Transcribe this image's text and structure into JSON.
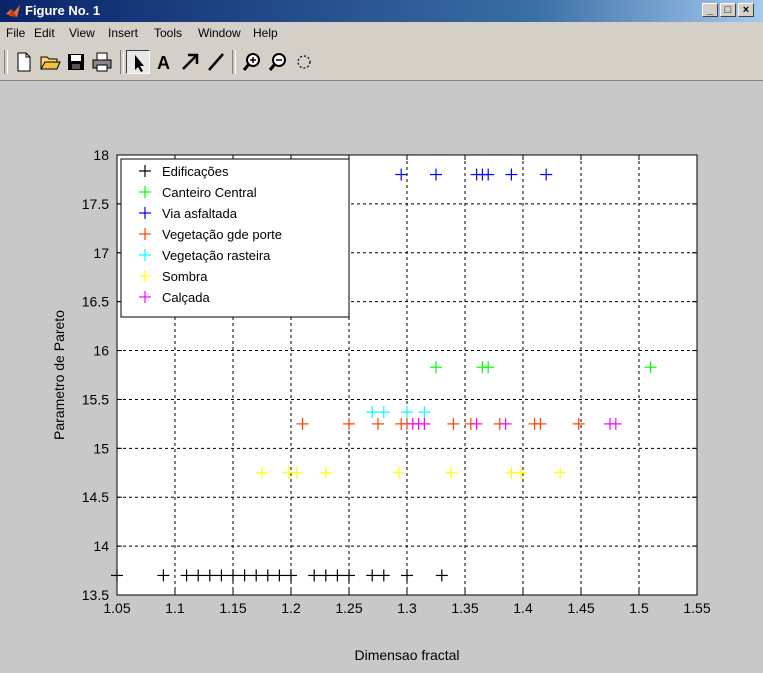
{
  "window": {
    "title": "Figure No. 1",
    "menu": [
      "File",
      "Edit",
      "View",
      "Insert",
      "Tools",
      "Window",
      "Help"
    ]
  },
  "toolbar_icons": [
    "new-file-icon",
    "open-folder-icon",
    "save-icon",
    "print-icon",
    "arrow-select-icon",
    "text-insert-icon",
    "arrow-insert-icon",
    "line-insert-icon",
    "zoom-in-icon",
    "zoom-out-icon",
    "rotate-icon"
  ],
  "chart_data": {
    "type": "scatter",
    "marker": "+",
    "xlabel": "Dimensao fractal",
    "ylabel": "Parametro de Pareto",
    "xlim": [
      1.05,
      1.55
    ],
    "ylim": [
      13.5,
      18
    ],
    "xticks": [
      "1.05",
      "1.1",
      "1.15",
      "1.2",
      "1.25",
      "1.3",
      "1.35",
      "1.4",
      "1.45",
      "1.5",
      "1.55"
    ],
    "yticks": [
      "13.5",
      "14",
      "14.5",
      "15",
      "15.5",
      "16",
      "16.5",
      "17",
      "17.5",
      "18"
    ],
    "grid": true,
    "legend_position": "top-left",
    "series": [
      {
        "name": "Edificações",
        "color": "#000000",
        "x": [
          1.05,
          1.09,
          1.11,
          1.12,
          1.13,
          1.14,
          1.15,
          1.16,
          1.17,
          1.18,
          1.19,
          1.2,
          1.22,
          1.23,
          1.24,
          1.25,
          1.27,
          1.28,
          1.3,
          1.33
        ],
        "y": [
          13.7,
          13.7,
          13.7,
          13.7,
          13.7,
          13.7,
          13.7,
          13.7,
          13.7,
          13.7,
          13.7,
          13.7,
          13.7,
          13.7,
          13.7,
          13.7,
          13.7,
          13.7,
          13.7,
          13.7
        ]
      },
      {
        "name": "Canteiro Central",
        "color": "#00ff00",
        "x": [
          1.325,
          1.365,
          1.37,
          1.51
        ],
        "y": [
          15.83,
          15.83,
          15.83,
          15.83
        ]
      },
      {
        "name": "Via asfaltada",
        "color": "#0000ff",
        "x": [
          1.295,
          1.325,
          1.36,
          1.365,
          1.37,
          1.39,
          1.42
        ],
        "y": [
          17.8,
          17.8,
          17.8,
          17.8,
          17.8,
          17.8,
          17.8
        ]
      },
      {
        "name": "Vegetação gde porte",
        "color": "#ff4000",
        "x": [
          1.21,
          1.25,
          1.275,
          1.295,
          1.3,
          1.34,
          1.355,
          1.38,
          1.41,
          1.415,
          1.448
        ],
        "y": [
          15.25,
          15.25,
          15.25,
          15.25,
          15.25,
          15.25,
          15.25,
          15.25,
          15.25,
          15.25,
          15.25
        ]
      },
      {
        "name": "Vegetação rasteira",
        "color": "#00ffff",
        "x": [
          1.27,
          1.28,
          1.3,
          1.315
        ],
        "y": [
          15.37,
          15.37,
          15.37,
          15.37
        ]
      },
      {
        "name": "Sombra",
        "color": "#ffff00",
        "x": [
          1.175,
          1.198,
          1.205,
          1.23,
          1.293,
          1.338,
          1.39,
          1.398,
          1.432
        ],
        "y": [
          14.75,
          14.75,
          14.75,
          14.75,
          14.75,
          14.75,
          14.75,
          14.75,
          14.75
        ]
      },
      {
        "name": "Calçada",
        "color": "#ff00ff",
        "x": [
          1.305,
          1.31,
          1.315,
          1.36,
          1.385,
          1.475,
          1.48
        ],
        "y": [
          15.25,
          15.25,
          15.25,
          15.25,
          15.25,
          15.25,
          15.25
        ]
      }
    ]
  }
}
